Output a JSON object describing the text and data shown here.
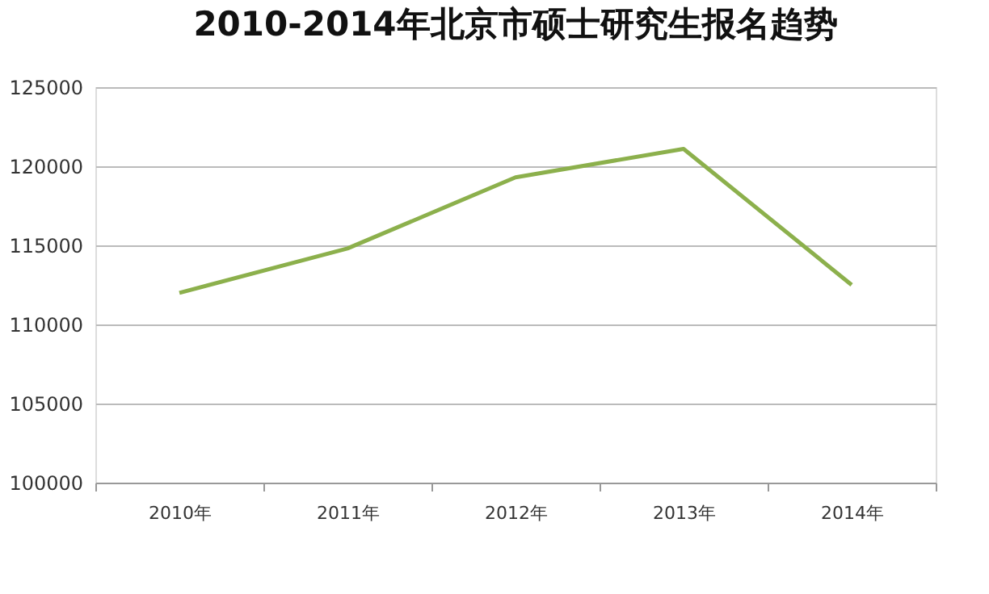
{
  "chart_data": {
    "type": "line",
    "title": "2010-2014年北京市硕士研究生报名趋势",
    "categories": [
      "2010年",
      "2011年",
      "2012年",
      "2013年",
      "2014年"
    ],
    "series": [
      {
        "color": "#8cb04c",
        "values": [
          112000,
          114800,
          119300,
          121100,
          112500
        ]
      }
    ],
    "ylim": [
      100000,
      125000
    ],
    "yticks": [
      100000,
      105000,
      110000,
      115000,
      120000,
      125000
    ],
    "grid": "y",
    "legend": false,
    "marker": "none",
    "line_style": "solid"
  }
}
